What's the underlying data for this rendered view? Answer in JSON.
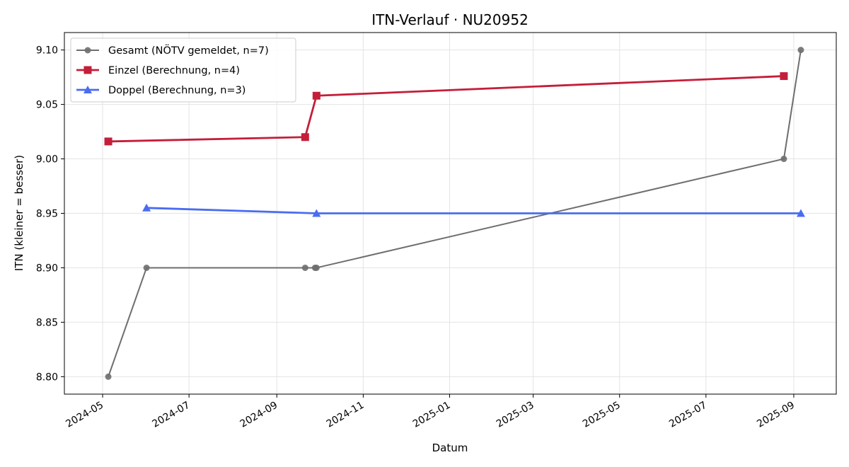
{
  "chart_data": {
    "type": "line",
    "title": "ITN-Verlauf · NU20952",
    "xlabel": "Datum",
    "ylabel": "ITN  (kleiner = besser)",
    "x_type": "date",
    "xlim": [
      "2024-04-04",
      "2025-10-01"
    ],
    "ylim": [
      8.784,
      9.116
    ],
    "x_ticks": [
      "2024-05-01",
      "2024-07-01",
      "2024-09-01",
      "2024-11-01",
      "2025-01-01",
      "2025-03-01",
      "2025-05-01",
      "2025-07-01",
      "2025-09-01"
    ],
    "x_tick_labels": [
      "2024-05",
      "2024-07",
      "2024-09",
      "2024-11",
      "2025-01",
      "2025-03",
      "2025-05",
      "2025-07",
      "2025-09"
    ],
    "y_ticks": [
      8.8,
      8.85,
      8.9,
      8.95,
      9.0,
      9.05,
      9.1
    ],
    "y_tick_labels": [
      "8.80",
      "8.85",
      "8.90",
      "8.95",
      "9.00",
      "9.05",
      "9.10"
    ],
    "grid": true,
    "legend_position": "top-left",
    "series": [
      {
        "name": "Gesamt (NÖTV gemeldet, n=7)",
        "color": "#6e6e6e",
        "marker": "circle",
        "points": [
          {
            "x": "2024-05-05",
            "y": 8.8
          },
          {
            "x": "2024-06-01",
            "y": 8.9
          },
          {
            "x": "2024-09-21",
            "y": 8.9
          },
          {
            "x": "2024-09-28",
            "y": 8.9
          },
          {
            "x": "2024-09-29",
            "y": 8.9
          },
          {
            "x": "2025-08-25",
            "y": 9.0
          },
          {
            "x": "2025-09-06",
            "y": 9.1
          }
        ]
      },
      {
        "name": "Einzel (Berechnung, n=4)",
        "color": "#c41e3a",
        "marker": "square",
        "points": [
          {
            "x": "2024-05-05",
            "y": 9.016
          },
          {
            "x": "2024-09-21",
            "y": 9.02
          },
          {
            "x": "2024-09-29",
            "y": 9.058
          },
          {
            "x": "2025-08-25",
            "y": 9.076
          }
        ]
      },
      {
        "name": "Doppel (Berechnung, n=3)",
        "color": "#4a6cf0",
        "marker": "triangle",
        "points": [
          {
            "x": "2024-06-01",
            "y": 8.955
          },
          {
            "x": "2024-09-29",
            "y": 8.95
          },
          {
            "x": "2025-09-06",
            "y": 8.95
          }
        ]
      }
    ]
  }
}
